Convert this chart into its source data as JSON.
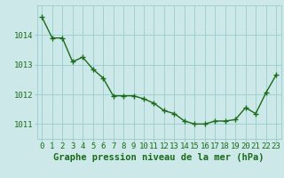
{
  "x": [
    0,
    1,
    2,
    3,
    4,
    5,
    6,
    7,
    8,
    9,
    10,
    11,
    12,
    13,
    14,
    15,
    16,
    17,
    18,
    19,
    20,
    21,
    22,
    23
  ],
  "y": [
    1014.6,
    1013.9,
    1013.9,
    1013.1,
    1013.25,
    1012.85,
    1012.55,
    1011.95,
    1011.95,
    1011.95,
    1011.85,
    1011.7,
    1011.45,
    1011.35,
    1011.1,
    1011.0,
    1011.0,
    1011.1,
    1011.1,
    1011.15,
    1011.55,
    1011.35,
    1012.05,
    1012.65
  ],
  "line_color": "#1a6b1a",
  "marker": "+",
  "marker_size": 4,
  "line_width": 1.0,
  "background_color": "#cce8e8",
  "grid_color": "#99cccc",
  "xlabel": "Graphe pression niveau de la mer (hPa)",
  "xlabel_fontsize": 7.5,
  "xlabel_color": "#1a6b1a",
  "tick_label_color": "#1a6b1a",
  "tick_label_fontsize": 6.5,
  "ylim": [
    1010.5,
    1015.0
  ],
  "xlim": [
    -0.5,
    23.5
  ],
  "yticks": [
    1011,
    1012,
    1013,
    1014
  ],
  "xticks": [
    0,
    1,
    2,
    3,
    4,
    5,
    6,
    7,
    8,
    9,
    10,
    11,
    12,
    13,
    14,
    15,
    16,
    17,
    18,
    19,
    20,
    21,
    22,
    23
  ]
}
